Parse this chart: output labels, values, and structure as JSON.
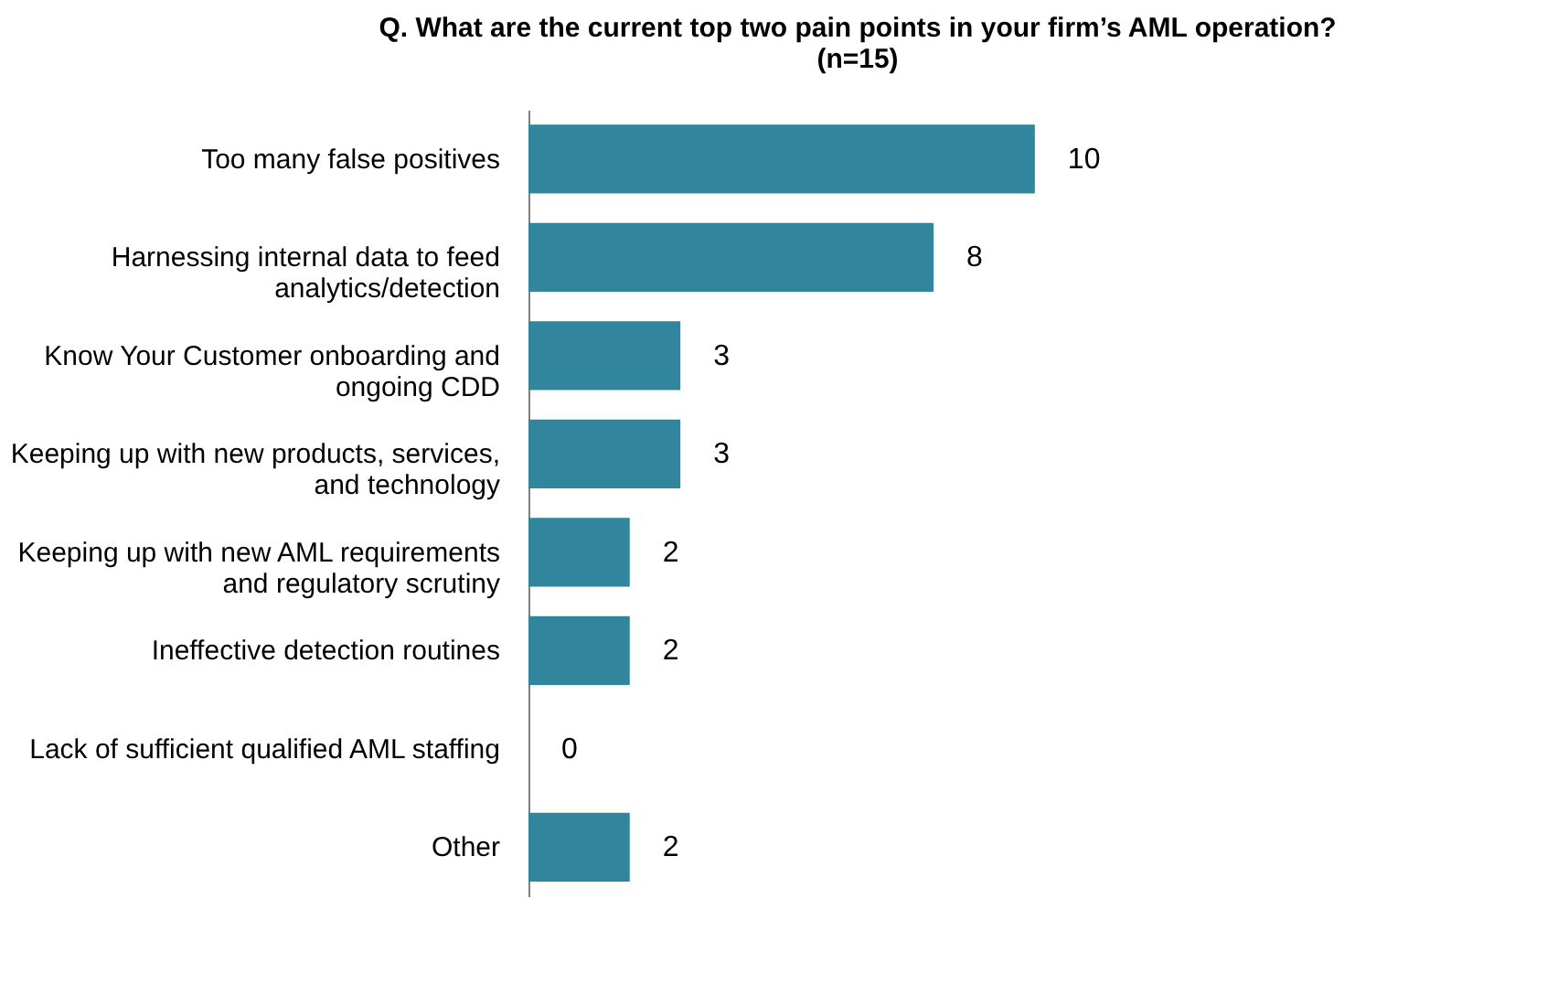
{
  "chart_data": {
    "type": "bar",
    "orientation": "horizontal",
    "title": [
      "Q. What are the current top two pain points in your firm’s AML operation?",
      "(n=15)"
    ],
    "categories": [
      "Too many false positives",
      "Harnessing internal data to feed\nanalytics/detection",
      "Know Your Customer onboarding and\nongoing CDD",
      "Keeping up with new products, services,\nand technology",
      "Keeping up with new AML requirements\nand regulatory scrutiny",
      "Ineffective detection routines",
      "Lack of sufficient qualified AML staffing",
      "Other"
    ],
    "values": [
      10,
      8,
      3,
      3,
      2,
      2,
      0,
      2
    ],
    "color": "#31869e",
    "data_labels": true
  }
}
